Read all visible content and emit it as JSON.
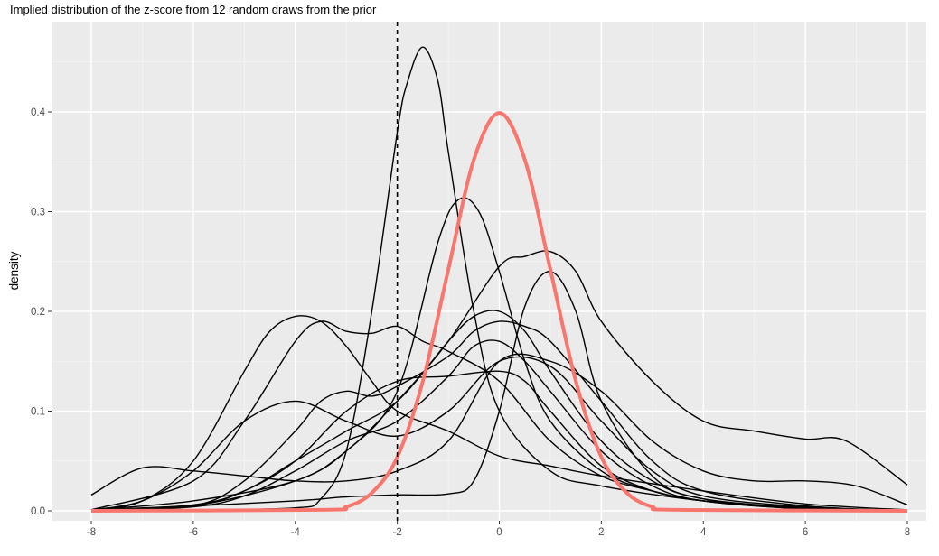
{
  "chart_data": {
    "type": "line",
    "title": "Implied distribution of the z-score from 12 random draws from the prior",
    "xlabel": "",
    "ylabel": "density",
    "xlim": [
      -8,
      8
    ],
    "ylim": [
      0,
      0.47
    ],
    "x_ticks": [
      -8,
      -6,
      -4,
      -2,
      0,
      2,
      4,
      6,
      8
    ],
    "y_ticks": [
      0.0,
      0.1,
      0.2,
      0.3,
      0.4
    ],
    "x_tick_labels": [
      "-8",
      "-6",
      "-4",
      "-2",
      "0",
      "2",
      "4",
      "6",
      "8"
    ],
    "y_tick_labels": [
      "0.0",
      "0.1",
      "0.2",
      "0.3",
      "0.4"
    ],
    "grid": true,
    "background": "#ebebeb",
    "vline": {
      "x": -2,
      "style": "dashed",
      "color": "#000000"
    },
    "reference_curve": {
      "kind": "standard normal density",
      "color": "#f8766d",
      "x": [
        -8,
        -3.5,
        -3,
        -2.5,
        -2,
        -1.5,
        -1,
        -0.5,
        0,
        0.5,
        1,
        1.5,
        2,
        2.5,
        3,
        3.5,
        8
      ],
      "y": [
        0,
        0.001,
        0.004,
        0.018,
        0.054,
        0.13,
        0.242,
        0.352,
        0.399,
        0.352,
        0.242,
        0.13,
        0.054,
        0.018,
        0.004,
        0.001,
        0
      ]
    },
    "series_color": "#000000",
    "series": [
      {
        "x": [
          -8,
          -6,
          -4,
          -3.5,
          -3,
          -2.5,
          -2,
          -1.8,
          -1.5,
          -1.2,
          -1,
          -0.5,
          0,
          1,
          2,
          4,
          6,
          8
        ],
        "y": [
          0,
          0.001,
          0.003,
          0.012,
          0.06,
          0.2,
          0.38,
          0.43,
          0.465,
          0.43,
          0.36,
          0.2,
          0.1,
          0.04,
          0.025,
          0.01,
          0.003,
          0
        ]
      },
      {
        "x": [
          -8,
          -6,
          -4,
          -3,
          -2,
          -1.2,
          -0.8,
          -0.4,
          0,
          0.5,
          1,
          2,
          3,
          4,
          6,
          8
        ],
        "y": [
          0,
          0.005,
          0.03,
          0.06,
          0.12,
          0.27,
          0.312,
          0.3,
          0.24,
          0.15,
          0.09,
          0.04,
          0.02,
          0.01,
          0.003,
          0
        ]
      },
      {
        "x": [
          -8,
          -6,
          -4,
          -3,
          -2,
          -1,
          -0.5,
          0,
          0.5,
          1,
          1.5,
          2,
          3,
          4,
          6,
          8
        ],
        "y": [
          0.001,
          0.005,
          0.01,
          0.014,
          0.016,
          0.017,
          0.03,
          0.1,
          0.205,
          0.24,
          0.2,
          0.11,
          0.035,
          0.012,
          0.003,
          0
        ]
      },
      {
        "x": [
          -8,
          -6,
          -4,
          -3,
          -2,
          -1,
          0,
          0.5,
          1,
          1.5,
          2,
          3,
          4,
          5,
          6,
          6.8,
          8
        ],
        "y": [
          0.001,
          0.01,
          0.03,
          0.06,
          0.11,
          0.17,
          0.245,
          0.255,
          0.26,
          0.24,
          0.19,
          0.13,
          0.09,
          0.08,
          0.072,
          0.07,
          0.026
        ]
      },
      {
        "x": [
          -8,
          -7,
          -6,
          -5,
          -4,
          -3,
          -2,
          -1,
          0,
          1,
          2,
          3,
          4,
          6,
          8
        ],
        "y": [
          0.001,
          0.01,
          0.04,
          0.09,
          0.11,
          0.09,
          0.075,
          0.1,
          0.15,
          0.145,
          0.09,
          0.04,
          0.015,
          0.004,
          0
        ]
      },
      {
        "x": [
          -8,
          -7,
          -6,
          -5,
          -4.5,
          -4,
          -3.5,
          -3,
          -2.5,
          -2,
          -1,
          0,
          1,
          2,
          4,
          6,
          8
        ],
        "y": [
          0.001,
          0.01,
          0.05,
          0.14,
          0.18,
          0.195,
          0.19,
          0.165,
          0.13,
          0.1,
          0.08,
          0.055,
          0.045,
          0.035,
          0.02,
          0.007,
          0.001
        ]
      },
      {
        "x": [
          -8,
          -6,
          -5,
          -4,
          -3.5,
          -3,
          -2.5,
          -2,
          -1.5,
          -1,
          0,
          1,
          2,
          3,
          4,
          6,
          8
        ],
        "y": [
          0.001,
          0.03,
          0.09,
          0.17,
          0.19,
          0.18,
          0.178,
          0.185,
          0.17,
          0.16,
          0.13,
          0.07,
          0.035,
          0.02,
          0.01,
          0.003,
          0
        ]
      },
      {
        "x": [
          -8,
          -7,
          -6,
          -5,
          -4,
          -3,
          -2,
          -1,
          0,
          1,
          2,
          3,
          4,
          5,
          6,
          7,
          8
        ],
        "y": [
          0.016,
          0.043,
          0.04,
          0.035,
          0.03,
          0.03,
          0.04,
          0.07,
          0.15,
          0.15,
          0.12,
          0.07,
          0.04,
          0.03,
          0.03,
          0.025,
          0.006
        ]
      },
      {
        "x": [
          -8,
          -6,
          -5,
          -4,
          -3,
          -2,
          -1,
          -0.5,
          0,
          0.5,
          1,
          2,
          3,
          4,
          6,
          8
        ],
        "y": [
          0,
          0.005,
          0.02,
          0.05,
          0.08,
          0.11,
          0.17,
          0.195,
          0.2,
          0.18,
          0.14,
          0.07,
          0.03,
          0.012,
          0.003,
          0
        ]
      },
      {
        "x": [
          -8,
          -6,
          -5,
          -4,
          -3.5,
          -3,
          -2.5,
          -2,
          -1,
          -0.5,
          0,
          0.5,
          1,
          2,
          3,
          4,
          6,
          8
        ],
        "y": [
          0,
          0.005,
          0.03,
          0.08,
          0.11,
          0.12,
          0.115,
          0.125,
          0.155,
          0.18,
          0.19,
          0.185,
          0.17,
          0.11,
          0.05,
          0.02,
          0.005,
          0
        ]
      },
      {
        "x": [
          -8,
          -6,
          -5,
          -4,
          -3,
          -2,
          -1,
          -0.5,
          0,
          0.5,
          1,
          2,
          3,
          4,
          6,
          8
        ],
        "y": [
          0,
          0.004,
          0.015,
          0.04,
          0.07,
          0.09,
          0.135,
          0.165,
          0.17,
          0.15,
          0.12,
          0.06,
          0.025,
          0.01,
          0.002,
          0
        ]
      },
      {
        "x": [
          -8,
          -6,
          -5,
          -4,
          -3,
          -2,
          -1,
          0,
          0.5,
          1,
          2,
          3,
          4,
          5,
          6,
          8
        ],
        "y": [
          0,
          0.006,
          0.02,
          0.05,
          0.1,
          0.13,
          0.135,
          0.14,
          0.13,
          0.1,
          0.045,
          0.02,
          0.01,
          0.005,
          0.002,
          0
        ]
      }
    ]
  }
}
